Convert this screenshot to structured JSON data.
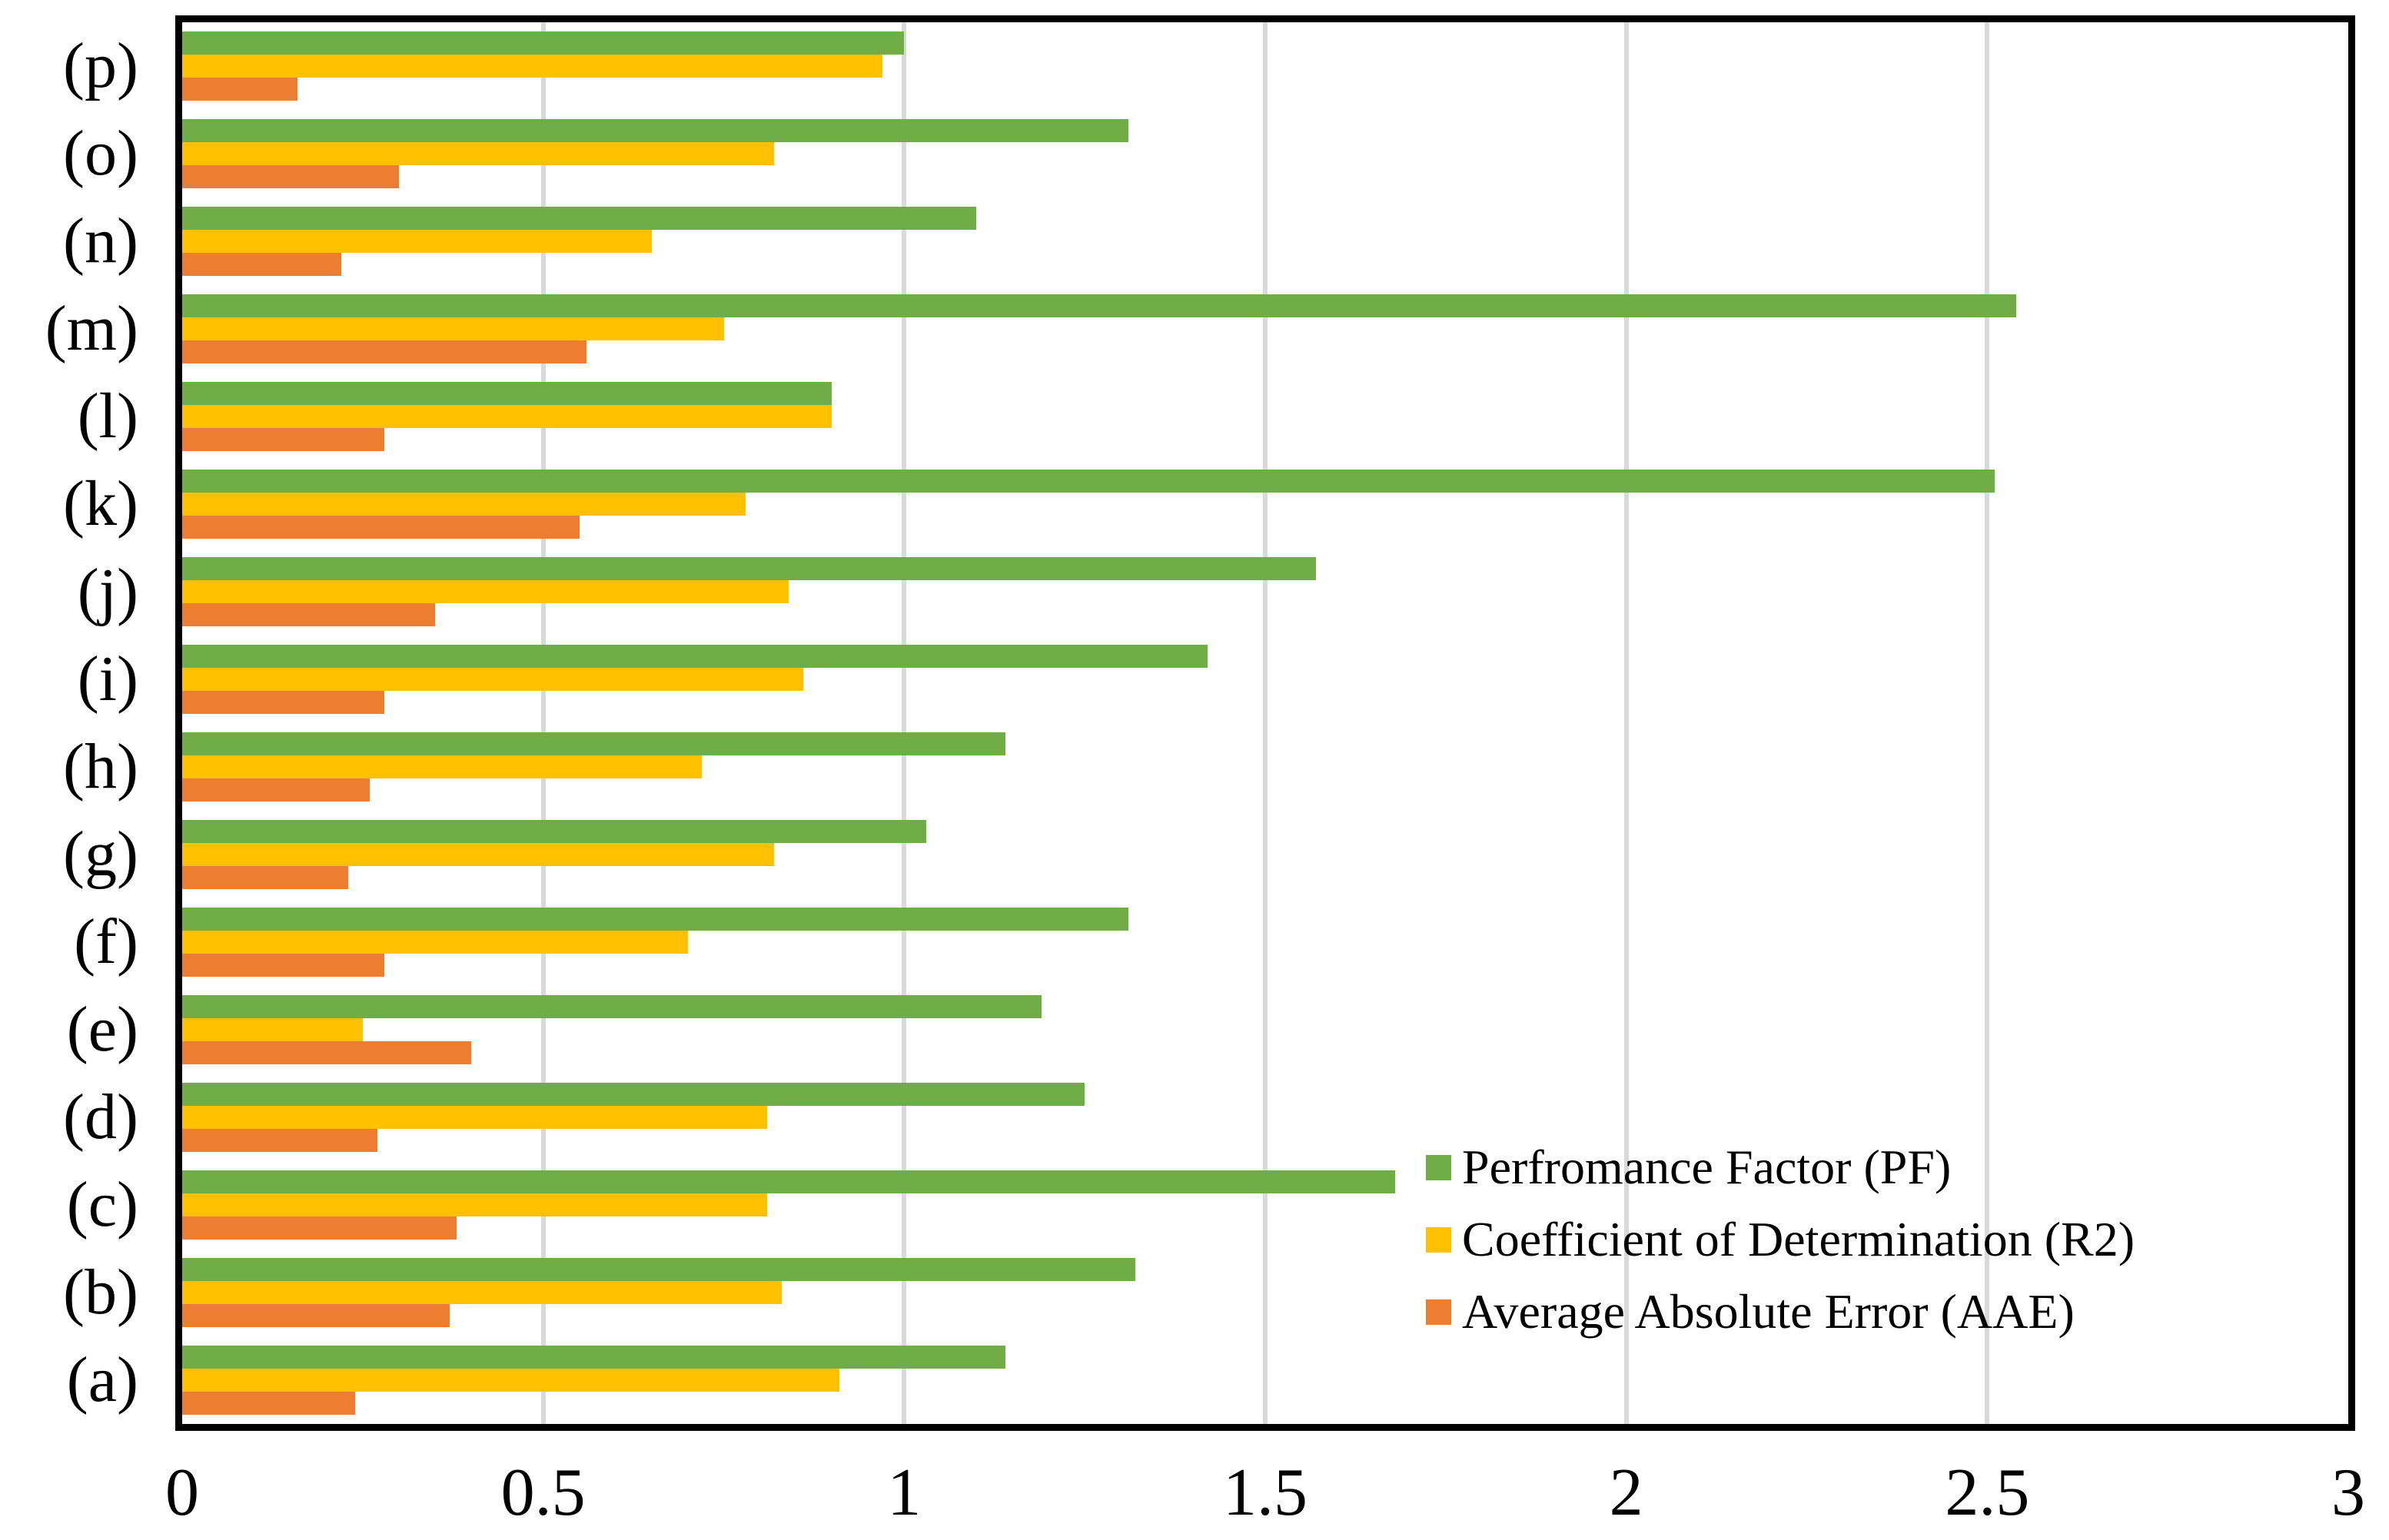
{
  "chart_data": {
    "type": "bar",
    "orientation": "horizontal",
    "title": "",
    "xlabel": "",
    "ylabel": "",
    "categories_top_to_bottom": [
      "(p)",
      "(o)",
      "(n)",
      "(m)",
      "(l)",
      "(k)",
      "(j)",
      "(i)",
      "(h)",
      "(g)",
      "(f)",
      "(e)",
      "(d)",
      "(c)",
      "(b)",
      "(a)"
    ],
    "series": [
      {
        "name": "Perfromance Factor (PF)",
        "color": "#70AD47",
        "values": [
          1.0,
          1.31,
          1.1,
          2.54,
          0.9,
          2.51,
          1.57,
          1.42,
          1.14,
          1.03,
          1.31,
          1.19,
          1.25,
          1.68,
          1.32,
          1.14
        ]
      },
      {
        "name": "Coefficient of Determination (R2)",
        "color": "#FFC000",
        "values": [
          0.97,
          0.82,
          0.65,
          0.75,
          0.9,
          0.78,
          0.84,
          0.86,
          0.72,
          0.82,
          0.7,
          0.25,
          0.81,
          0.81,
          0.83,
          0.91
        ]
      },
      {
        "name": "Average Absolute Error (AAE)",
        "color": "#ED7D31",
        "values": [
          0.16,
          0.3,
          0.22,
          0.56,
          0.28,
          0.55,
          0.35,
          0.28,
          0.26,
          0.23,
          0.28,
          0.4,
          0.27,
          0.38,
          0.37,
          0.24
        ]
      }
    ],
    "x_axis": {
      "min": 0,
      "max": 3,
      "tick_step": 0.5,
      "tick_labels": [
        "0",
        "0.5",
        "1",
        "1.5",
        "2",
        "2.5",
        "3"
      ]
    },
    "grid": true,
    "gridline_color": "#D9D9D9",
    "axis_color": "#000000",
    "background_color": "#FFFFFF",
    "legend_position": "inside-right-lower"
  }
}
